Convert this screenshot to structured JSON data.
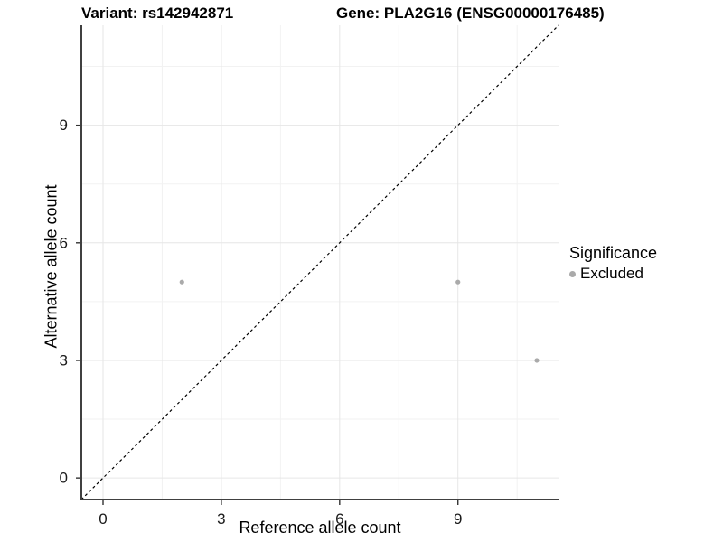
{
  "titles": {
    "variant": "Variant: rs142942871",
    "gene": "Gene: PLA2G16 (ENSG00000176485)"
  },
  "legend": {
    "title": "Significance",
    "items": [
      {
        "label": "Excluded",
        "color": "#aaaaaa"
      }
    ]
  },
  "chart_data": {
    "type": "scatter",
    "title": "Variant: rs142942871  |  Gene: PLA2G16 (ENSG00000176485)",
    "xlabel": "Reference allele count",
    "ylabel": "Alternative allele count",
    "xlim": [
      -0.55,
      11.55
    ],
    "ylim": [
      -0.55,
      11.55
    ],
    "x_ticks": [
      0,
      3,
      6,
      9
    ],
    "y_ticks": [
      0,
      3,
      6,
      9
    ],
    "x_minor_ticks": [
      1.5,
      4.5,
      7.5,
      10.5
    ],
    "y_minor_ticks": [
      1.5,
      4.5,
      7.5,
      10.5
    ],
    "grid": true,
    "legend_position": "right",
    "series": [
      {
        "name": "Excluded",
        "color": "#aaaaaa",
        "point_radius": 2.6,
        "points": [
          [
            2,
            5
          ],
          [
            9,
            5
          ],
          [
            11,
            3
          ]
        ]
      }
    ],
    "reference_line": {
      "type": "identity",
      "from": [
        -0.55,
        -0.55
      ],
      "to": [
        11.55,
        11.55
      ],
      "style": "dashed",
      "color": "#000000",
      "dash": "3,3"
    },
    "style": {
      "major_grid_color": "#e6e6e6",
      "minor_grid_color": "#f2f2f2",
      "axis_line_color": "#404040",
      "tick_color": "#333333",
      "tick_label_color": "#1a1a1a",
      "tick_font_size": 17,
      "tick_length": 5
    }
  }
}
